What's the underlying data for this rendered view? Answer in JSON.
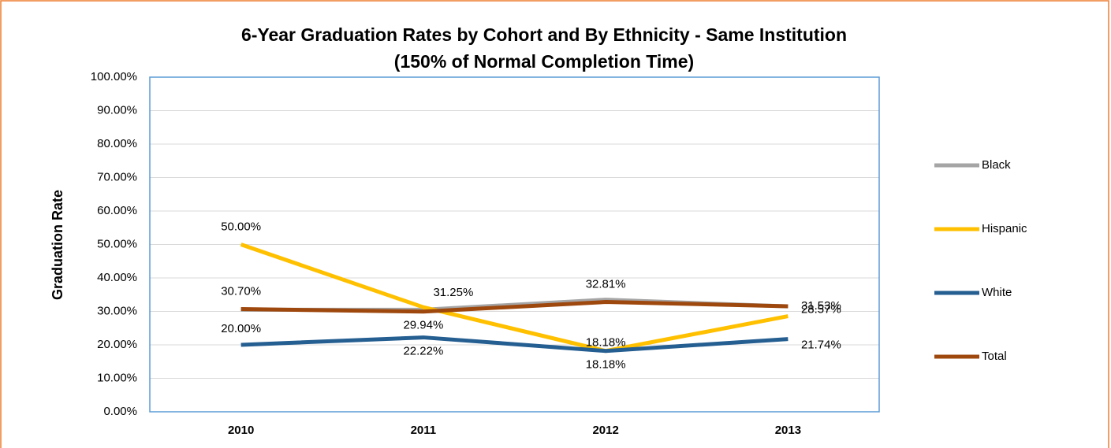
{
  "chart_data": {
    "type": "line",
    "title": "6-Year Graduation Rates by Cohort and By Ethnicity - Same Institution",
    "subtitle": "(150% of Normal Completion Time)",
    "y_label": "Graduation Rate",
    "categories": [
      "2010",
      "2011",
      "2012",
      "2013"
    ],
    "ylim": [
      0,
      100
    ],
    "yticks": [
      {
        "value": 0,
        "label": "0.00%"
      },
      {
        "value": 10,
        "label": "10.00%"
      },
      {
        "value": 20,
        "label": "20.00%"
      },
      {
        "value": 30,
        "label": "30.00%"
      },
      {
        "value": 40,
        "label": "40.00%"
      },
      {
        "value": 50,
        "label": "50.00%"
      },
      {
        "value": 60,
        "label": "60.00%"
      },
      {
        "value": 70,
        "label": "70.00%"
      },
      {
        "value": 80,
        "label": "80.00%"
      },
      {
        "value": 90,
        "label": "90.00%"
      },
      {
        "value": 100,
        "label": "100.00%"
      }
    ],
    "grid": true,
    "legend": "right",
    "series": [
      {
        "name": "Black",
        "color": "#a5a5a5",
        "values": [
          30.5,
          30.5,
          33.5,
          31.5
        ]
      },
      {
        "name": "Hispanic",
        "color": "#ffc000",
        "values": [
          50,
          31.25,
          18.18,
          28.57
        ],
        "value_labels": [
          "50.00%",
          "31.25%",
          "18.18%",
          "28.57%"
        ]
      },
      {
        "name": "White",
        "color": "#255e91",
        "values": [
          20,
          22.22,
          18.18,
          21.74
        ],
        "value_labels": [
          "20.00%",
          "22.22%",
          "18.18%",
          "21.74%"
        ]
      },
      {
        "name": "Total",
        "color": "#9e480e",
        "values": [
          30.7,
          29.94,
          32.81,
          31.53
        ],
        "value_labels": [
          "30.70%",
          "29.94%",
          "32.81%",
          "31.53%"
        ]
      }
    ]
  }
}
